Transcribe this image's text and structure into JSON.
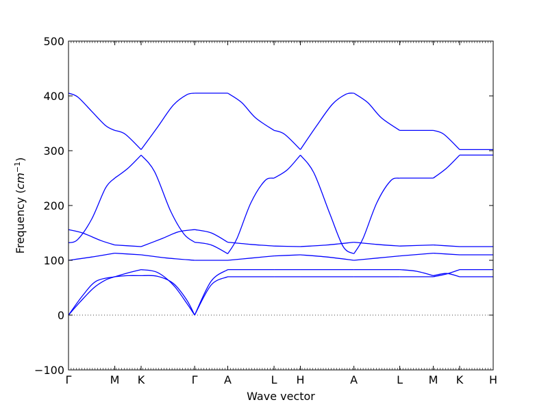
{
  "chart_data": {
    "type": "line",
    "xlabel": "Wave vector",
    "ylabel_prefix": "Frequency (",
    "ylabel_unit": "cm",
    "ylabel_exponent": "−1",
    "ylabel_suffix": ")",
    "ylim": [
      -100,
      500
    ],
    "yticks": [
      -100,
      0,
      100,
      200,
      300,
      400,
      500
    ],
    "zero_line": true,
    "xticks": [
      {
        "label": "Γ",
        "pos": 0.0
      },
      {
        "label": "M",
        "pos": 0.109
      },
      {
        "label": "K",
        "pos": 0.171
      },
      {
        "label": "Γ",
        "pos": 0.297
      },
      {
        "label": "A",
        "pos": 0.375
      },
      {
        "label": "L",
        "pos": 0.484
      },
      {
        "label": "H",
        "pos": 0.546
      },
      {
        "label": "A",
        "pos": 0.672
      },
      {
        "label": "L",
        "pos": 0.78
      },
      {
        "label": "M",
        "pos": 0.859
      },
      {
        "label": "K",
        "pos": 0.921
      },
      {
        "label": "H",
        "pos": 1.0
      }
    ],
    "series_color": "#0000ff",
    "series": [
      {
        "segment": "Γ-M",
        "bands": [
          [
            [
              0,
              0
            ],
            [
              0.3,
              35
            ],
            [
              0.6,
              62
            ],
            [
              1,
              70
            ]
          ],
          [
            [
              0,
              0
            ],
            [
              0.25,
              24
            ],
            [
              0.55,
              50
            ],
            [
              0.8,
              64
            ],
            [
              1,
              70
            ]
          ],
          [
            [
              0,
              100
            ],
            [
              0.5,
              106
            ],
            [
              1,
              113
            ]
          ],
          [
            [
              0,
              132
            ],
            [
              0.2,
              138
            ],
            [
              0.5,
              175
            ],
            [
              0.8,
              232
            ],
            [
              1,
              250
            ]
          ],
          [
            [
              0,
              156
            ],
            [
              0.3,
              150
            ],
            [
              0.7,
              136
            ],
            [
              1,
              128
            ]
          ],
          [
            [
              0,
              405
            ],
            [
              0.2,
              398
            ],
            [
              0.5,
              372
            ],
            [
              0.8,
              346
            ],
            [
              1,
              337
            ]
          ]
        ]
      },
      {
        "segment": "M-K",
        "bands": [
          [
            [
              0,
              70
            ],
            [
              0.5,
              72
            ],
            [
              1,
              72
            ]
          ],
          [
            [
              0,
              70
            ],
            [
              0.5,
              77
            ],
            [
              1,
              83
            ]
          ],
          [
            [
              0,
              113
            ],
            [
              1,
              110
            ]
          ],
          [
            [
              0,
              250
            ],
            [
              0.5,
              268
            ],
            [
              1,
              292
            ]
          ],
          [
            [
              0,
              128
            ],
            [
              1,
              125
            ]
          ],
          [
            [
              0,
              337
            ],
            [
              0.4,
              330
            ],
            [
              1,
              302
            ]
          ]
        ]
      },
      {
        "segment": "K-Γ",
        "bands": [
          [
            [
              0,
              72
            ],
            [
              0.3,
              71
            ],
            [
              0.6,
              58
            ],
            [
              0.85,
              28
            ],
            [
              1,
              0
            ]
          ],
          [
            [
              0,
              83
            ],
            [
              0.3,
              78
            ],
            [
              0.6,
              55
            ],
            [
              0.85,
              22
            ],
            [
              1,
              0
            ]
          ],
          [
            [
              0,
              110
            ],
            [
              0.5,
              104
            ],
            [
              1,
              100
            ]
          ],
          [
            [
              0,
              292
            ],
            [
              0.25,
              262
            ],
            [
              0.55,
              190
            ],
            [
              0.8,
              148
            ],
            [
              1,
              133
            ]
          ],
          [
            [
              0,
              125
            ],
            [
              0.4,
              140
            ],
            [
              0.7,
              152
            ],
            [
              1,
              156
            ]
          ],
          [
            [
              0,
              302
            ],
            [
              0.3,
              342
            ],
            [
              0.6,
              383
            ],
            [
              0.85,
              402
            ],
            [
              1,
              405
            ]
          ]
        ]
      },
      {
        "segment": "Γ-A",
        "bands": [
          [
            [
              0,
              0
            ],
            [
              0.5,
              55
            ],
            [
              1,
              70
            ]
          ],
          [
            [
              0,
              0
            ],
            [
              0.5,
              62
            ],
            [
              1,
              83
            ]
          ],
          [
            [
              0,
              100
            ],
            [
              1,
              100
            ]
          ],
          [
            [
              0,
              133
            ],
            [
              0.5,
              128
            ],
            [
              1,
              112
            ]
          ],
          [
            [
              0,
              156
            ],
            [
              0.5,
              150
            ],
            [
              1,
              133
            ]
          ],
          [
            [
              0,
              405
            ],
            [
              1,
              405
            ]
          ]
        ]
      },
      {
        "segment": "A-L",
        "bands": [
          [
            [
              0,
              70
            ],
            [
              1,
              70
            ]
          ],
          [
            [
              0,
              83
            ],
            [
              1,
              83
            ]
          ],
          [
            [
              0,
              100
            ],
            [
              0.5,
              104
            ],
            [
              1,
              108
            ]
          ],
          [
            [
              0,
              112
            ],
            [
              0.2,
              140
            ],
            [
              0.5,
              205
            ],
            [
              0.8,
              245
            ],
            [
              1,
              250
            ]
          ],
          [
            [
              0,
              133
            ],
            [
              0.5,
              129
            ],
            [
              1,
              126
            ]
          ],
          [
            [
              0,
              405
            ],
            [
              0.3,
              388
            ],
            [
              0.6,
              360
            ],
            [
              1,
              337
            ]
          ]
        ]
      },
      {
        "segment": "L-H",
        "bands": [
          [
            [
              0,
              70
            ],
            [
              1,
              70
            ]
          ],
          [
            [
              0,
              83
            ],
            [
              1,
              83
            ]
          ],
          [
            [
              0,
              108
            ],
            [
              1,
              110
            ]
          ],
          [
            [
              0,
              250
            ],
            [
              0.5,
              265
            ],
            [
              1,
              292
            ]
          ],
          [
            [
              0,
              126
            ],
            [
              1,
              125
            ]
          ],
          [
            [
              0,
              337
            ],
            [
              0.4,
              330
            ],
            [
              1,
              302
            ]
          ]
        ]
      },
      {
        "segment": "H-A",
        "bands": [
          [
            [
              0,
              70
            ],
            [
              1,
              70
            ]
          ],
          [
            [
              0,
              83
            ],
            [
              1,
              83
            ]
          ],
          [
            [
              0,
              110
            ],
            [
              0.5,
              106
            ],
            [
              1,
              100
            ]
          ],
          [
            [
              0,
              292
            ],
            [
              0.25,
              260
            ],
            [
              0.55,
              185
            ],
            [
              0.8,
              125
            ],
            [
              1,
              112
            ]
          ],
          [
            [
              0,
              125
            ],
            [
              0.5,
              128
            ],
            [
              1,
              133
            ]
          ],
          [
            [
              0,
              302
            ],
            [
              0.3,
              345
            ],
            [
              0.6,
              385
            ],
            [
              0.85,
              403
            ],
            [
              1,
              405
            ]
          ]
        ]
      },
      {
        "segment": "A-L",
        "bands": [
          [
            [
              0,
              70
            ],
            [
              1,
              70
            ]
          ],
          [
            [
              0,
              83
            ],
            [
              1,
              83
            ]
          ],
          [
            [
              0,
              100
            ],
            [
              0.5,
              104
            ],
            [
              1,
              108
            ]
          ],
          [
            [
              0,
              112
            ],
            [
              0.2,
              140
            ],
            [
              0.5,
              205
            ],
            [
              0.8,
              245
            ],
            [
              1,
              250
            ]
          ],
          [
            [
              0,
              133
            ],
            [
              0.5,
              129
            ],
            [
              1,
              126
            ]
          ],
          [
            [
              0,
              405
            ],
            [
              0.3,
              388
            ],
            [
              0.6,
              360
            ],
            [
              1,
              337
            ]
          ]
        ]
      },
      {
        "segment": "L-M",
        "bands": [
          [
            [
              0,
              70
            ],
            [
              1,
              70
            ]
          ],
          [
            [
              0,
              83
            ],
            [
              0.5,
              80
            ],
            [
              1,
              72
            ]
          ],
          [
            [
              0,
              108
            ],
            [
              1,
              113
            ]
          ],
          [
            [
              0,
              250
            ],
            [
              1,
              250
            ]
          ],
          [
            [
              0,
              126
            ],
            [
              1,
              128
            ]
          ],
          [
            [
              0,
              337
            ],
            [
              1,
              337
            ]
          ]
        ]
      },
      {
        "segment": "M-K",
        "bands": [
          [
            [
              0,
              70
            ],
            [
              0.5,
              75
            ],
            [
              1,
              83
            ]
          ],
          [
            [
              0,
              72
            ],
            [
              0.5,
              76
            ],
            [
              1,
              70
            ]
          ],
          [
            [
              0,
              113
            ],
            [
              1,
              110
            ]
          ],
          [
            [
              0,
              250
            ],
            [
              0.5,
              268
            ],
            [
              1,
              292
            ]
          ],
          [
            [
              0,
              128
            ],
            [
              1,
              125
            ]
          ],
          [
            [
              0,
              337
            ],
            [
              0.4,
              330
            ],
            [
              1,
              302
            ]
          ]
        ]
      },
      {
        "segment": "K-H",
        "bands": [
          [
            [
              0,
              70
            ],
            [
              1,
              70
            ]
          ],
          [
            [
              0,
              83
            ],
            [
              1,
              83
            ]
          ],
          [
            [
              0,
              110
            ],
            [
              1,
              110
            ]
          ],
          [
            [
              0,
              292
            ],
            [
              1,
              292
            ]
          ],
          [
            [
              0,
              125
            ],
            [
              1,
              125
            ]
          ],
          [
            [
              0,
              302
            ],
            [
              1,
              302
            ]
          ]
        ]
      }
    ]
  }
}
